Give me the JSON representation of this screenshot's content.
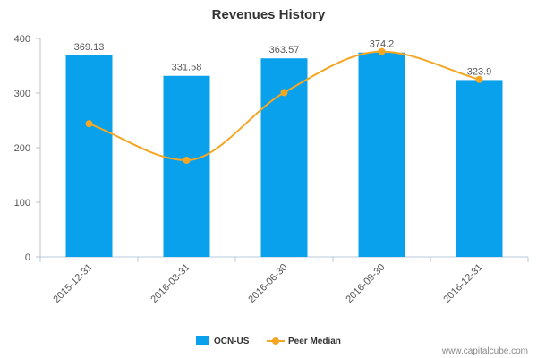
{
  "chart_data": {
    "type": "bar",
    "title": "Revenues History",
    "categories": [
      "2015-12-31",
      "2016-03-31",
      "2016-06-30",
      "2016-09-30",
      "2016-12-31"
    ],
    "series": [
      {
        "name": "OCN-US",
        "type": "bar",
        "values": [
          369.13,
          331.58,
          363.57,
          374.2,
          323.9
        ],
        "labels": [
          "369.13",
          "331.58",
          "363.57",
          "374.2",
          "323.9"
        ],
        "color": "#0aa1ec"
      },
      {
        "name": "Peer Median",
        "type": "line",
        "smooth": true,
        "values": [
          244,
          177,
          301,
          376,
          325
        ],
        "color": "#f5a623"
      }
    ],
    "ylim": [
      0,
      400
    ],
    "yticks": [
      0,
      100,
      200,
      300,
      400
    ],
    "grid": false,
    "legend_position": "bottom"
  },
  "watermark": "www.capitalcube.com"
}
